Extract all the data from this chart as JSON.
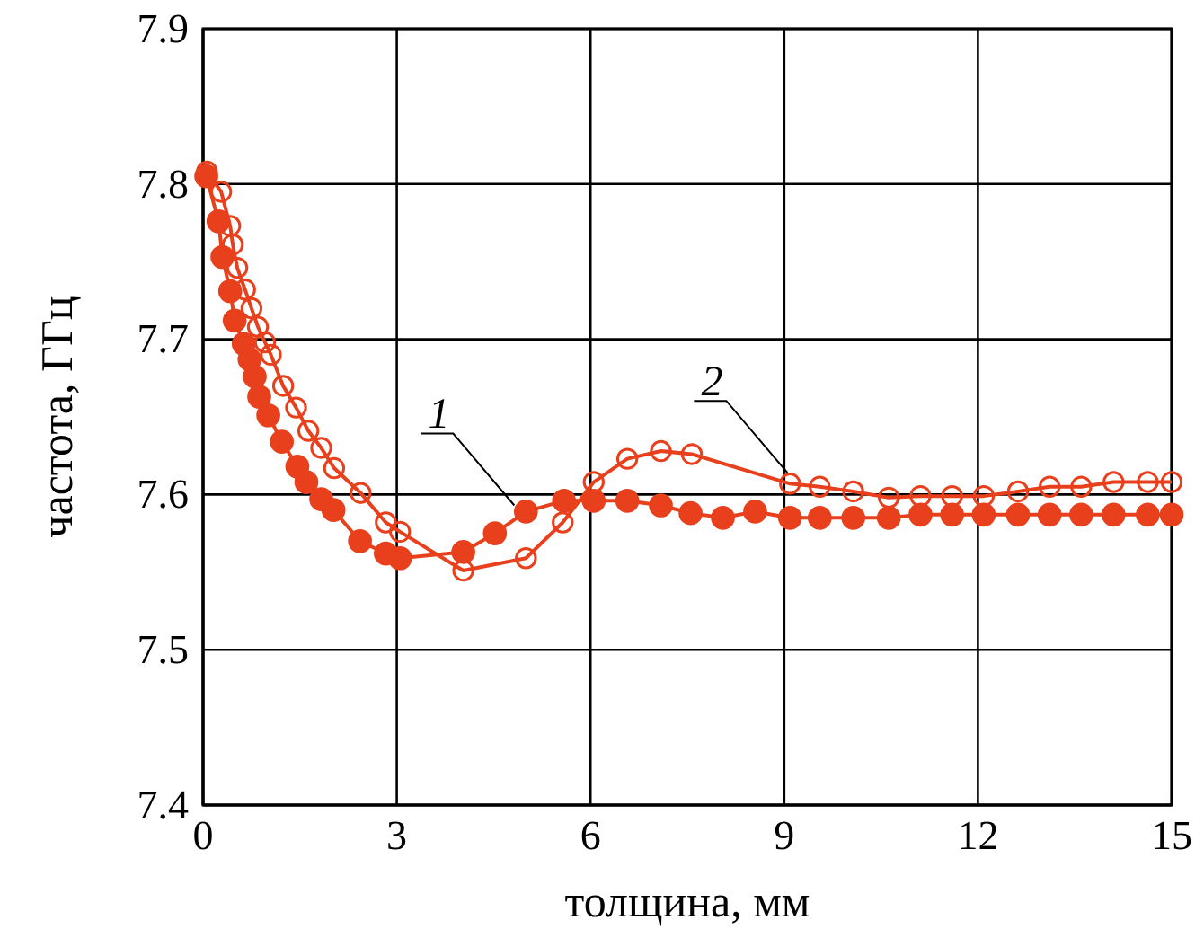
{
  "chart_data": {
    "type": "line",
    "xlabel": "толщина, мм",
    "ylabel": "частота, ГГц",
    "xlim": [
      0,
      15
    ],
    "xticks": [
      0,
      3,
      6,
      9,
      12,
      15
    ],
    "ylim": [
      7.4,
      7.9
    ],
    "yticks": [
      7.4,
      7.5,
      7.6,
      7.7,
      7.8,
      7.9
    ],
    "grid": true,
    "marker": "circle",
    "line_style": "solid",
    "series": [
      {
        "color": "#e8401c",
        "x": [
          0.05,
          0.24,
          0.3,
          0.42,
          0.49,
          0.63,
          0.72,
          0.8,
          0.87,
          1.01,
          1.22,
          1.46,
          1.6,
          1.83,
          2.02,
          2.43,
          2.83,
          3.05,
          4.03,
          4.52,
          5.0,
          5.59,
          6.05,
          6.57,
          7.09,
          7.55,
          8.05,
          8.55,
          9.09,
          9.55,
          10.07,
          10.62,
          11.11,
          11.6,
          12.09,
          12.62,
          13.11,
          13.6,
          14.1,
          14.63,
          15.0
        ],
        "values": [
          7.805,
          7.776,
          7.753,
          7.731,
          7.712,
          7.697,
          7.687,
          7.676,
          7.663,
          7.651,
          7.634,
          7.618,
          7.608,
          7.597,
          7.59,
          7.57,
          7.562,
          7.559,
          7.563,
          7.575,
          7.589,
          7.596,
          7.596,
          7.596,
          7.593,
          7.588,
          7.585,
          7.589,
          7.585,
          7.585,
          7.585,
          7.585,
          7.587,
          7.587,
          7.587,
          7.587,
          7.587,
          7.587,
          7.587,
          7.587,
          7.587
        ]
      },
      {
        "color": "#e8401c",
        "x": [
          0.06,
          0.28,
          0.42,
          0.46,
          0.53,
          0.65,
          0.75,
          0.85,
          0.96,
          1.05,
          1.24,
          1.44,
          1.63,
          1.83,
          2.03,
          2.44,
          2.83,
          3.05,
          4.03,
          5.0,
          5.57,
          6.05,
          6.57,
          7.09,
          7.57,
          9.09,
          9.55,
          10.07,
          10.62,
          11.11,
          11.6,
          12.09,
          12.62,
          13.11,
          13.6,
          14.1,
          14.63,
          15.0
        ],
        "values": [
          7.808,
          7.795,
          7.773,
          7.761,
          7.746,
          7.732,
          7.72,
          7.708,
          7.698,
          7.69,
          7.67,
          7.656,
          7.641,
          7.63,
          7.617,
          7.601,
          7.582,
          7.576,
          7.551,
          7.559,
          7.582,
          7.608,
          7.623,
          7.628,
          7.626,
          7.607,
          7.605,
          7.602,
          7.598,
          7.599,
          7.599,
          7.599,
          7.602,
          7.605,
          7.605,
          7.608,
          7.608,
          7.608
        ]
      }
    ],
    "annotations": [
      {
        "text": "1",
        "x": 4.82,
        "y": 7.593
      },
      {
        "text": "2",
        "x": 9.05,
        "y": 7.614
      }
    ]
  }
}
